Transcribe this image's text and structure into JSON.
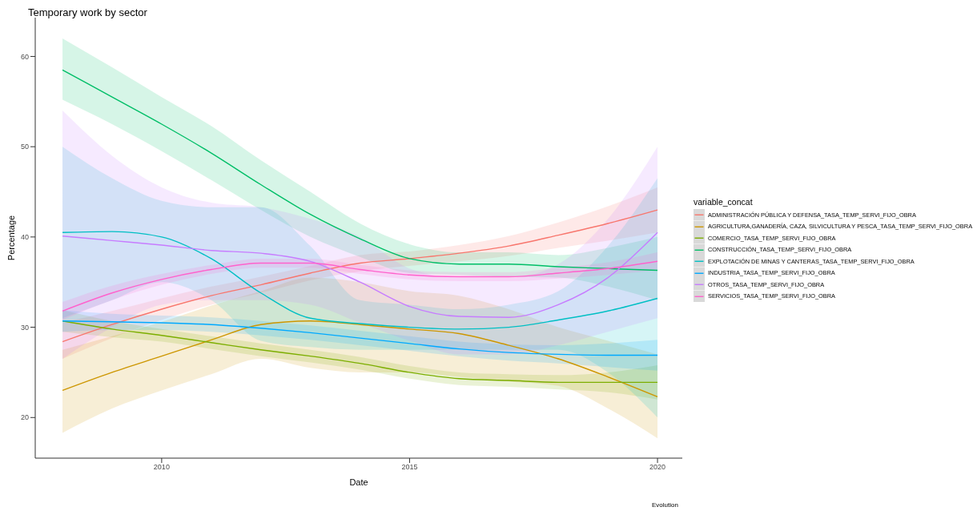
{
  "chart_data": {
    "type": "line",
    "title": "Temporary work by sector",
    "xlabel": "Date",
    "ylabel": "Percentage",
    "legend_title": "variable_concat",
    "annotations": [
      "Evolution"
    ],
    "x": [
      2008,
      2009,
      2010,
      2011,
      2012,
      2013,
      2014,
      2015,
      2016,
      2017,
      2018,
      2019,
      2020
    ],
    "xlim": [
      2007.45,
      2020.5
    ],
    "xticks": [
      2010,
      2015,
      2020
    ],
    "ylim": [
      15.5,
      64.3
    ],
    "yticks": [
      20,
      30,
      40,
      50,
      60
    ],
    "grid": false,
    "legend": "right",
    "marker": "none",
    "line_style": "solid",
    "series": [
      {
        "name": "ADMINISTRACIÓN PÚBLICA Y DEFENSA_TASA_TEMP_SERVI_FIJO_OBRA",
        "color": "#f8766d",
        "values": [
          28.4,
          30.3,
          32,
          33.5,
          34.7,
          36,
          37.1,
          37.6,
          38.2,
          39,
          40.2,
          41.5,
          43
        ],
        "lower": [
          26.5,
          28.8,
          30.8,
          32.5,
          33.8,
          35.2,
          36.2,
          36.8,
          37.3,
          37.9,
          38.8,
          39.6,
          40.5
        ],
        "upper": [
          30.5,
          31.8,
          33.2,
          34.5,
          35.6,
          36.8,
          38,
          38.4,
          39.1,
          40.1,
          41.6,
          43.4,
          45.5
        ]
      },
      {
        "name": "AGRICULTURA,GANADERÍA, CAZA, SILVICULTURA Y PESCA_TASA_TEMP_SERVI_FIJO_OBRA",
        "color": "#cd9600",
        "values": [
          23,
          25,
          26.8,
          28.6,
          30.3,
          30.7,
          30.3,
          29.8,
          29.3,
          28,
          26.5,
          24.5,
          22.3
        ],
        "lower": [
          18.3,
          21,
          23,
          24.8,
          26.5,
          25.5,
          25,
          25,
          24.5,
          24,
          23.5,
          21,
          17.7
        ],
        "upper": [
          27.5,
          29,
          30.6,
          32.4,
          34,
          35.5,
          35,
          34,
          33.5,
          32,
          30,
          28.5,
          27
        ]
      },
      {
        "name": "COMERCIO_TASA_TEMP_SERVI_FIJO_OBRA",
        "color": "#7cae00",
        "values": [
          30.7,
          29.8,
          29.1,
          28.3,
          27.5,
          26.8,
          26,
          25,
          24.3,
          24.1,
          23.9,
          23.9,
          23.9
        ],
        "lower": [
          29.5,
          28.9,
          28.4,
          27.6,
          26.8,
          26.1,
          25.3,
          24.3,
          23.6,
          23.4,
          23.1,
          22.8,
          22
        ],
        "upper": [
          31.9,
          30.7,
          29.8,
          29,
          28.2,
          27.5,
          26.7,
          25.7,
          25,
          24.8,
          24.7,
          25,
          25.8
        ]
      },
      {
        "name": "CONSTRUCCIÓN_TASA_TEMP_SERVI_FIJO_OBRA",
        "color": "#00be67",
        "values": [
          58.5,
          55.5,
          52.5,
          49.3,
          45.8,
          42.5,
          39.8,
          37.6,
          37,
          37,
          36.7,
          36.5,
          36.3
        ],
        "lower": [
          55.2,
          52.5,
          49.5,
          46.3,
          43,
          40,
          37.8,
          36,
          35.8,
          35.6,
          35.5,
          34.5,
          33
        ],
        "upper": [
          62,
          58.8,
          55.5,
          52.3,
          48.5,
          45,
          41.5,
          39.2,
          38.3,
          38.3,
          38,
          38.8,
          40
        ]
      },
      {
        "name": "EXPLOTACIÓN DE MINAS Y CANTERAS_TASA_TEMP_SERVI_FIJO_OBRA",
        "color": "#00bfc4",
        "values": [
          40.5,
          40.6,
          40,
          37.6,
          33.8,
          31,
          30.4,
          30,
          29.8,
          30,
          30.8,
          31.8,
          33.2
        ],
        "lower": [
          31,
          33,
          35,
          33,
          28.5,
          27.8,
          27.5,
          27.5,
          27.5,
          27.5,
          27.5,
          25,
          20
        ],
        "upper": [
          50,
          46.5,
          44,
          43.3,
          43.3,
          39,
          33,
          32.5,
          32,
          32.5,
          34,
          39,
          46.5
        ]
      },
      {
        "name": "INDUSTRIA_TASA_TEMP_SERVI_FIJO_OBRA",
        "color": "#00a9ff",
        "values": [
          30.7,
          30.6,
          30.5,
          30.3,
          29.9,
          29.4,
          28.8,
          28.2,
          27.6,
          27.2,
          27,
          26.9,
          26.9
        ],
        "lower": [
          29.5,
          29.7,
          29.7,
          29.5,
          29.1,
          28.6,
          28,
          27.4,
          26.8,
          26.3,
          26,
          25.6,
          25.2
        ],
        "upper": [
          31.9,
          31.5,
          31.3,
          31.1,
          30.7,
          30.2,
          29.6,
          29,
          28.4,
          28.1,
          28,
          28.2,
          28.6
        ]
      },
      {
        "name": "OTROS_TASA_TEMP_SERVI_FIJO_OBRA",
        "color": "#c77cff",
        "values": [
          40.1,
          39.6,
          39.1,
          38.5,
          38.2,
          37.3,
          35,
          32.3,
          31.2,
          31.1,
          32.5,
          35.5,
          40.5
        ],
        "lower": [
          26.5,
          30,
          32.5,
          33,
          33,
          32.5,
          30.5,
          28.5,
          27,
          27,
          28,
          29.5,
          31
        ],
        "upper": [
          54,
          49,
          45.5,
          43.8,
          43.3,
          42,
          40,
          36.5,
          35.5,
          35.5,
          37,
          42,
          50
        ]
      },
      {
        "name": "SERVICIOS_TASA_TEMP_SERVI_FIJO_OBRA",
        "color": "#ff61cc",
        "values": [
          31.8,
          33.8,
          35.3,
          36.4,
          37.1,
          37.1,
          36.4,
          35.8,
          35.6,
          35.6,
          36,
          36.5,
          37.3
        ],
        "lower": [
          30.8,
          33,
          34.7,
          35.9,
          36.6,
          36.6,
          35.9,
          35.3,
          35.1,
          35.1,
          35.4,
          35.8,
          36.3
        ],
        "upper": [
          32.8,
          34.6,
          35.9,
          36.9,
          37.6,
          37.6,
          36.9,
          36.3,
          36.1,
          36.1,
          36.6,
          37.2,
          38.3
        ]
      }
    ]
  }
}
